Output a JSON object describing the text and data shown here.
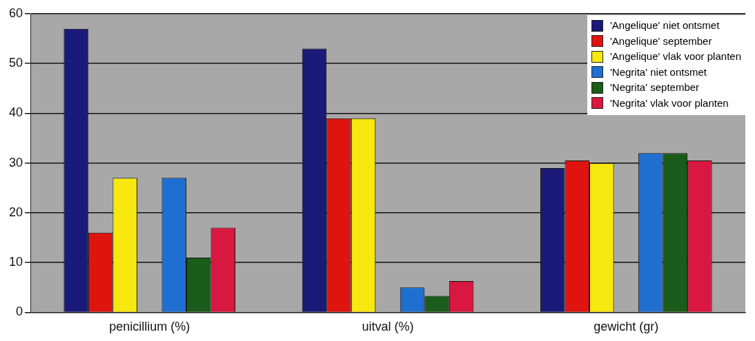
{
  "chart_data": {
    "type": "bar",
    "categories": [
      "penicillium (%)",
      "uitval (%)",
      "gewicht (gr)"
    ],
    "series": [
      {
        "name": "'Angelique' niet ontsmet",
        "color": "#1a1a78",
        "values": [
          57,
          53,
          29
        ]
      },
      {
        "name": "'Angelique' september",
        "color": "#e0140f",
        "values": [
          16,
          39,
          30.5
        ]
      },
      {
        "name": "'Angelique' vlak voor planten",
        "color": "#f7e80f",
        "values": [
          27,
          39,
          30
        ]
      },
      {
        "name": "'Negrita' niet ontsmet",
        "color": "#1f6fd0",
        "values": [
          27,
          5,
          32
        ]
      },
      {
        "name": "'Negrita' september",
        "color": "#1a5c1a",
        "values": [
          11,
          3.3,
          32
        ]
      },
      {
        "name": "'Negrita' vlak voor planten",
        "color": "#d81840",
        "values": [
          17,
          6.3,
          30.5
        ]
      }
    ],
    "ylim": [
      0,
      60
    ],
    "yticks": [
      0,
      10,
      20,
      30,
      40,
      50,
      60
    ],
    "grid": "y",
    "legend": "top right"
  }
}
